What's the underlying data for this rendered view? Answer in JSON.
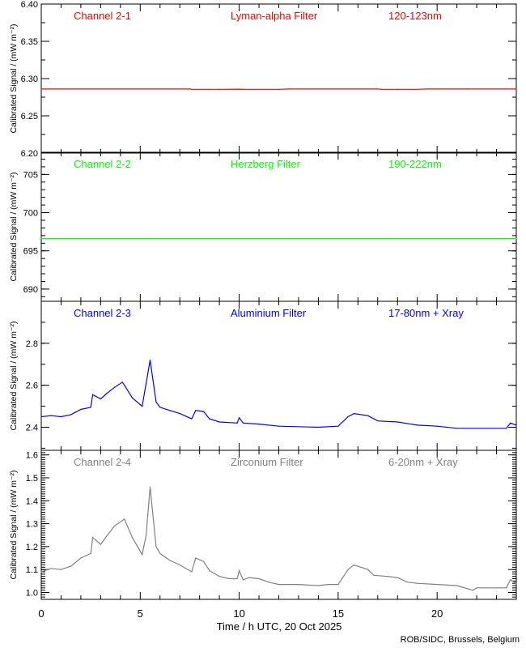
{
  "chart_data": {
    "type": "line",
    "xlabel": "Time / h UTC, 20 Oct 2025",
    "xlim": [
      0,
      24
    ],
    "x_ticks": [
      "0",
      "5",
      "10",
      "15",
      "20"
    ],
    "credit": "ROB/SIDC, Brussels, Belgium",
    "ylabel": "Calibrated Signal / (mW m⁻²)",
    "panels": [
      {
        "channel": "Channel 2-1",
        "filter": "Lyman-alpha Filter",
        "band": "120-123nm",
        "color": "#ff0000",
        "ylim": [
          6.2,
          6.4
        ],
        "major": 0.05,
        "minor": 0.025,
        "decimals": 2,
        "y_ticks": [
          "6.20",
          "6.25",
          "6.30",
          "6.35",
          "6.40"
        ],
        "points": [
          [
            0,
            6.286
          ],
          [
            7.5,
            6.286
          ],
          [
            7.6,
            6.2855
          ],
          [
            8.5,
            6.2855
          ],
          [
            9,
            6.2855
          ],
          [
            10,
            6.2858
          ],
          [
            10.3,
            6.2855
          ],
          [
            12,
            6.2855
          ],
          [
            12.5,
            6.286
          ],
          [
            17,
            6.286
          ],
          [
            17.2,
            6.2855
          ],
          [
            18,
            6.2855
          ],
          [
            19,
            6.2855
          ],
          [
            19.5,
            6.286
          ],
          [
            21.5,
            6.286
          ],
          [
            24,
            6.286
          ]
        ]
      },
      {
        "channel": "Channel 2-2",
        "filter": "Herzberg Filter",
        "band": "190-222nm",
        "color": "#00ff00",
        "ylim": [
          688.4,
          707.9
        ],
        "major": 5,
        "minor": 1,
        "decimals": 0,
        "y_ticks": [
          "690",
          "695",
          "700",
          "705"
        ],
        "points": [
          [
            0,
            696.6
          ],
          [
            6,
            696.6
          ],
          [
            12,
            696.6
          ],
          [
            18,
            696.6
          ],
          [
            24,
            696.6
          ]
        ]
      },
      {
        "channel": "Channel 2-3",
        "filter": "Aluminium Filter",
        "band": "17-80nm + Xray",
        "color": "#0000ff",
        "ylim": [
          2.29,
          3.0
        ],
        "major": 0.2,
        "minor": 0.1,
        "decimals": 1,
        "y_ticks": [
          "2.4",
          "2.6",
          "2.8"
        ],
        "points": [
          [
            0,
            2.45
          ],
          [
            0.5,
            2.455
          ],
          [
            1,
            2.45
          ],
          [
            1.5,
            2.46
          ],
          [
            2,
            2.485
          ],
          [
            2.5,
            2.495
          ],
          [
            2.6,
            2.555
          ],
          [
            3,
            2.535
          ],
          [
            3.3,
            2.56
          ],
          [
            3.7,
            2.59
          ],
          [
            4.1,
            2.615
          ],
          [
            4.6,
            2.54
          ],
          [
            5.1,
            2.5
          ],
          [
            5.5,
            2.72
          ],
          [
            5.8,
            2.52
          ],
          [
            6,
            2.495
          ],
          [
            6.5,
            2.48
          ],
          [
            7,
            2.465
          ],
          [
            7.6,
            2.44
          ],
          [
            7.8,
            2.48
          ],
          [
            8.2,
            2.475
          ],
          [
            8.5,
            2.44
          ],
          [
            9,
            2.425
          ],
          [
            9.9,
            2.42
          ],
          [
            10,
            2.445
          ],
          [
            10.2,
            2.42
          ],
          [
            11,
            2.415
          ],
          [
            12,
            2.405
          ],
          [
            14,
            2.4
          ],
          [
            15,
            2.405
          ],
          [
            15.5,
            2.45
          ],
          [
            15.8,
            2.465
          ],
          [
            16.5,
            2.455
          ],
          [
            17,
            2.43
          ],
          [
            18,
            2.425
          ],
          [
            19,
            2.41
          ],
          [
            20,
            2.405
          ],
          [
            21,
            2.395
          ],
          [
            23.5,
            2.395
          ],
          [
            23.7,
            2.42
          ],
          [
            24,
            2.41
          ]
        ]
      },
      {
        "channel": "Channel 2-4",
        "filter": "Zirconium Filter",
        "band": "6-20nm + Xray",
        "color": "#808080",
        "ylim": [
          0.97,
          1.62
        ],
        "major": 0.1,
        "minor": 0.01,
        "decimals": 1,
        "y_ticks": [
          "1.0",
          "1.1",
          "1.2",
          "1.3",
          "1.4",
          "1.5",
          "1.6"
        ],
        "points": [
          [
            0,
            1.09
          ],
          [
            0.5,
            1.105
          ],
          [
            1,
            1.1
          ],
          [
            1.5,
            1.115
          ],
          [
            2,
            1.15
          ],
          [
            2.5,
            1.17
          ],
          [
            2.6,
            1.24
          ],
          [
            3,
            1.21
          ],
          [
            3.3,
            1.245
          ],
          [
            3.7,
            1.29
          ],
          [
            4.2,
            1.32
          ],
          [
            4.6,
            1.24
          ],
          [
            5.1,
            1.165
          ],
          [
            5.3,
            1.25
          ],
          [
            5.5,
            1.46
          ],
          [
            5.8,
            1.2
          ],
          [
            6,
            1.17
          ],
          [
            6.5,
            1.14
          ],
          [
            7,
            1.12
          ],
          [
            7.6,
            1.09
          ],
          [
            7.8,
            1.15
          ],
          [
            8.2,
            1.135
          ],
          [
            8.5,
            1.095
          ],
          [
            9,
            1.07
          ],
          [
            9.5,
            1.06
          ],
          [
            9.9,
            1.06
          ],
          [
            10,
            1.095
          ],
          [
            10.2,
            1.055
          ],
          [
            10.5,
            1.065
          ],
          [
            11,
            1.06
          ],
          [
            11.5,
            1.045
          ],
          [
            12,
            1.035
          ],
          [
            13,
            1.035
          ],
          [
            14,
            1.03
          ],
          [
            14.5,
            1.035
          ],
          [
            15,
            1.035
          ],
          [
            15.5,
            1.1
          ],
          [
            15.8,
            1.12
          ],
          [
            16.5,
            1.1
          ],
          [
            16.8,
            1.075
          ],
          [
            17.5,
            1.07
          ],
          [
            18,
            1.065
          ],
          [
            18.5,
            1.045
          ],
          [
            19,
            1.04
          ],
          [
            20,
            1.035
          ],
          [
            21,
            1.03
          ],
          [
            21.8,
            1.01
          ],
          [
            22,
            1.02
          ],
          [
            23.5,
            1.02
          ],
          [
            23.7,
            1.055
          ],
          [
            24,
            1.04
          ]
        ]
      }
    ]
  }
}
